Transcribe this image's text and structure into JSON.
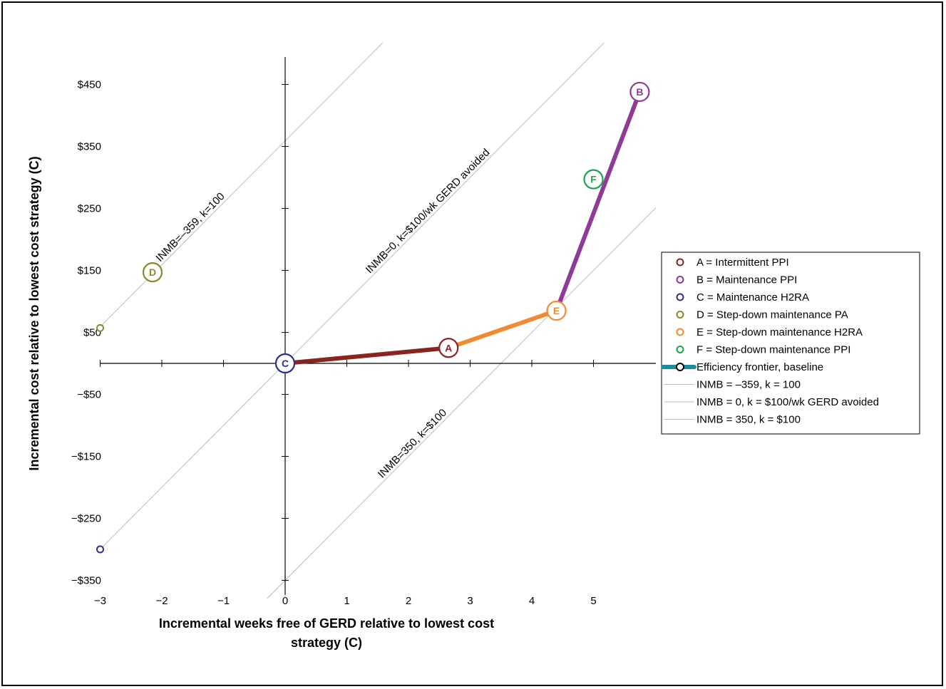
{
  "chart_data": {
    "type": "scatter",
    "title": "",
    "xlabel_lines": [
      "Incremental weeks free of GERD relative to lowest cost",
      "strategy (C)"
    ],
    "ylabel": "Incremental cost relative to lowest cost strategy (C)",
    "xlim": [
      -3,
      6
    ],
    "ylim": [
      -350,
      480
    ],
    "x_ticks": [
      -3,
      -2,
      -1,
      0,
      1,
      2,
      3,
      4,
      5
    ],
    "x_tick_labels": [
      "−3",
      "−2",
      "−1",
      "0",
      "1",
      "2",
      "3",
      "4",
      "5"
    ],
    "y_ticks": [
      450,
      350,
      250,
      150,
      50,
      -50,
      -150,
      -250,
      -350
    ],
    "y_tick_labels": [
      "$450",
      "$350",
      "$250",
      "$150",
      "$50",
      "−$50",
      "−$150",
      "−$250",
      "−$350"
    ],
    "points": [
      {
        "key": "A",
        "x": 2.65,
        "y": 25,
        "color": "#8b2323"
      },
      {
        "key": "B",
        "x": 5.75,
        "y": 438,
        "color": "#8e3a96"
      },
      {
        "key": "C",
        "x": 0,
        "y": 0,
        "color": "#2e2e8c"
      },
      {
        "key": "D",
        "x": -2.15,
        "y": 147,
        "color": "#8a8a2b"
      },
      {
        "key": "E",
        "x": 4.4,
        "y": 85,
        "color": "#f08a33"
      },
      {
        "key": "F",
        "x": 5.0,
        "y": 297,
        "color": "#1ea34f"
      }
    ],
    "small_markers": [
      {
        "x": -3,
        "y": 57,
        "color": "#8a8a2b"
      },
      {
        "x": -3,
        "y": -300,
        "color": "#2e2e8c"
      }
    ],
    "frontier_segments": [
      {
        "x": [
          0,
          2.65
        ],
        "y": [
          0,
          25
        ],
        "color": "#8b2323"
      },
      {
        "x": [
          2.65,
          4.4
        ],
        "y": [
          25,
          85
        ],
        "color": "#f08a33"
      },
      {
        "x": [
          4.4,
          5.75
        ],
        "y": [
          85,
          438
        ],
        "color": "#8e3a96"
      }
    ],
    "inmb_lines": [
      {
        "intercept": 359,
        "label": "INMB=–359, k=100",
        "label_at_x": -1.5
      },
      {
        "intercept": 0,
        "label": "INMB=0, k=$100/wk GERD avoided",
        "label_at_x": 2.35
      },
      {
        "intercept": -350,
        "label": "INMB=350, k=$100",
        "label_at_x": 2.1
      }
    ],
    "slope": 100,
    "legend_position": "right",
    "legend": [
      {
        "type": "marker",
        "color": "#8b2323",
        "label": "A = Intermittent PPI"
      },
      {
        "type": "marker",
        "color": "#8e3a96",
        "label": "B = Maintenance PPI"
      },
      {
        "type": "marker",
        "color": "#2e2e8c",
        "label": "C = Maintenance H2RA"
      },
      {
        "type": "marker",
        "color": "#8a8a2b",
        "label": "D = Step-down maintenance PA"
      },
      {
        "type": "marker",
        "color": "#f08a33",
        "label": "E = Step-down maintenance H2RA"
      },
      {
        "type": "marker",
        "color": "#1ea34f",
        "label": "F = Step-down maintenance PPI"
      },
      {
        "type": "frontier",
        "color": "#1a8f99",
        "label": "Efficiency frontier, baseline"
      },
      {
        "type": "line",
        "color": "#bbbbbb",
        "label": "INMB = –359, k = 100"
      },
      {
        "type": "line",
        "color": "#bbbbbb",
        "label": "INMB = 0, k = $100/wk GERD avoided"
      },
      {
        "type": "line",
        "color": "#bbbbbb",
        "label": "INMB = 350, k = $100"
      }
    ]
  }
}
